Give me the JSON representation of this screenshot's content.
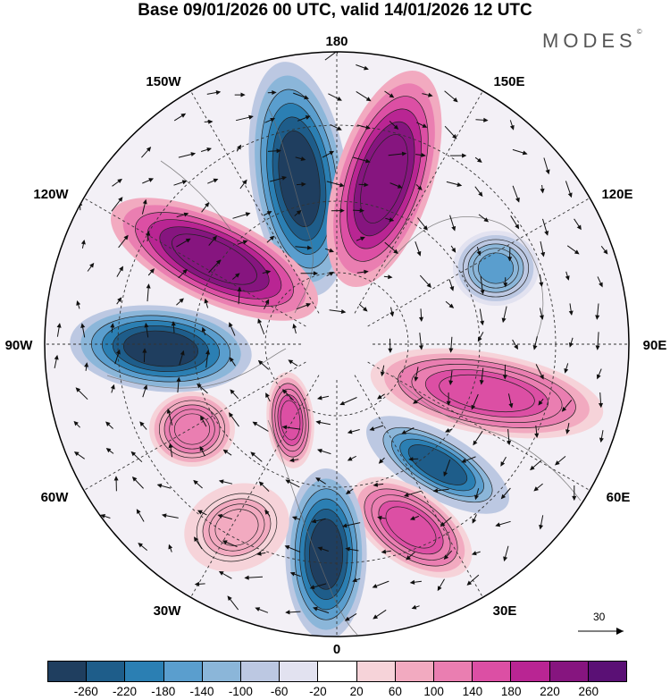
{
  "header": {
    "title": "Base 09/01/2026 00 UTC, valid 14/01/2026 12 UTC",
    "brand": "MODES",
    "brand_mark": "©"
  },
  "map": {
    "projection": "north-polar-stereographic",
    "longitude_labels": {
      "lon_180": "180",
      "lon_150w": "150W",
      "lon_150e": "150E",
      "lon_120w": "120W",
      "lon_120e": "120E",
      "lon_90w": "90W",
      "lon_90e": "90E",
      "lon_60w": "60W",
      "lon_60e": "60E",
      "lon_30w": "30W",
      "lon_30e": "30E",
      "lon_0": "0"
    },
    "vector_reference": {
      "label": "30"
    },
    "anomaly_cells": [
      {
        "id": "low-pacific-180",
        "sign": "negative",
        "peak": -260
      },
      {
        "id": "high-pacific-150e",
        "sign": "positive",
        "peak": 260
      },
      {
        "id": "high-canada-120w",
        "sign": "positive",
        "peak": 260
      },
      {
        "id": "low-hudson-90w",
        "sign": "negative",
        "peak": -260
      },
      {
        "id": "low-siberia-110e",
        "sign": "negative",
        "peak": -140
      },
      {
        "id": "high-asia-80e",
        "sign": "positive",
        "peak": 180
      },
      {
        "id": "low-asia-50e",
        "sign": "negative",
        "peak": -220
      },
      {
        "id": "high-europe-35e",
        "sign": "positive",
        "peak": 180
      },
      {
        "id": "low-europe-0",
        "sign": "negative",
        "peak": -260
      },
      {
        "id": "high-atlantic-60w",
        "sign": "positive",
        "peak": 140
      },
      {
        "id": "high-atlantic-30w",
        "sign": "positive",
        "peak": 100
      },
      {
        "id": "high-greenland",
        "sign": "positive",
        "peak": 180
      }
    ]
  },
  "colorbar": {
    "colors": [
      "#1f3e5f",
      "#1e5d8a",
      "#2b7fb3",
      "#5a9ece",
      "#8bb6d9",
      "#bcc8e2",
      "#e2e2f0",
      "#ffffff",
      "#f6d3d9",
      "#f2aac0",
      "#ea7eb1",
      "#dc4fa4",
      "#b92593",
      "#86157f",
      "#5a1075"
    ],
    "tick_labels": [
      "-260",
      "-220",
      "-180",
      "-140",
      "-100",
      "-60",
      "-20",
      "20",
      "60",
      "100",
      "140",
      "180",
      "220",
      "260"
    ]
  }
}
